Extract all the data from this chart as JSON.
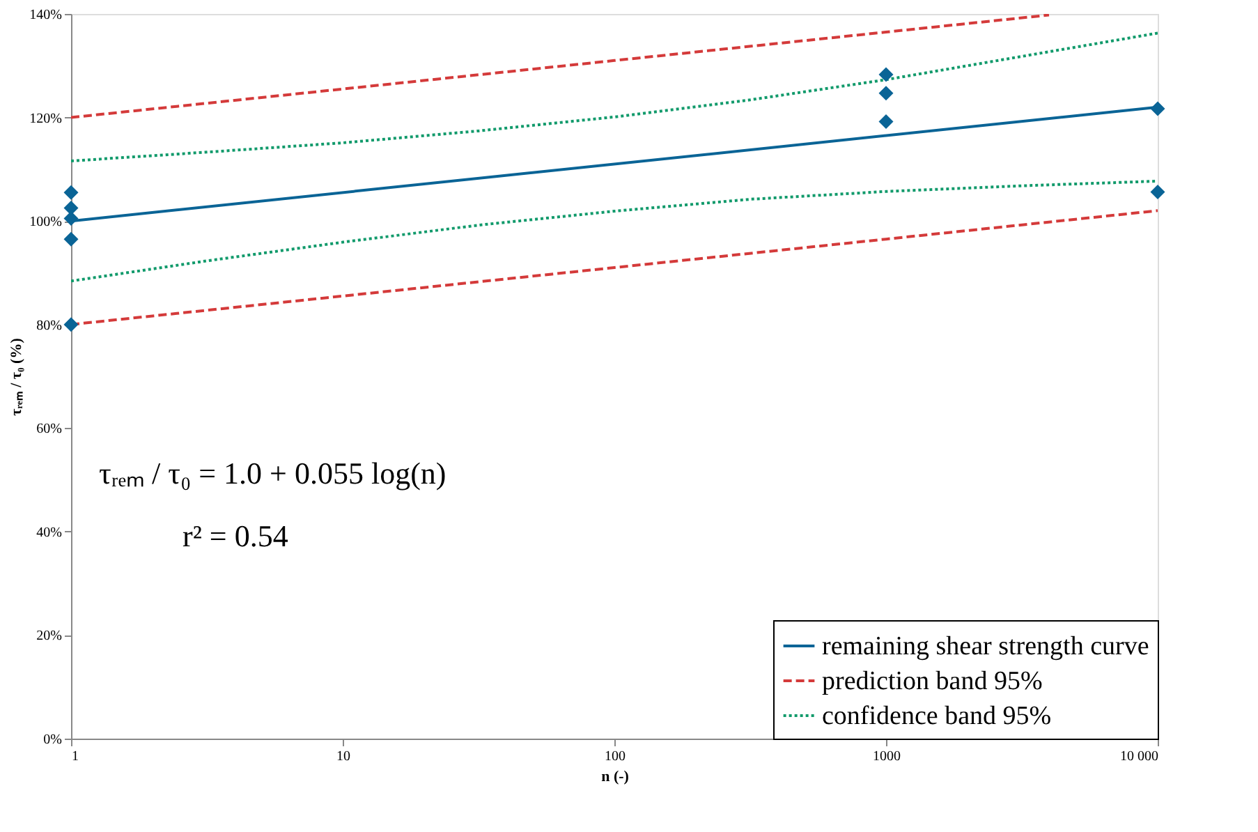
{
  "chart_data": {
    "type": "line",
    "xlabel": "n (-)",
    "ylabel": "τᵣₑₘ / τ₀ (%)",
    "log": "x",
    "grid": false,
    "legend": "bottom right",
    "xlim": [
      1,
      10000
    ],
    "xticks": [
      1,
      10,
      100,
      1000,
      {
        "value": 10000,
        "label": "10 000"
      }
    ],
    "ylim": [
      0,
      140
    ],
    "yticks": [
      {
        "value": 0,
        "label": "0%"
      },
      {
        "value": 20,
        "label": "20%"
      },
      {
        "value": 40,
        "label": "40%"
      },
      {
        "value": 60,
        "label": "60%"
      },
      {
        "value": 80,
        "label": "80%"
      },
      {
        "value": 100,
        "label": "100%"
      },
      {
        "value": 120,
        "label": "120%"
      },
      {
        "value": 140,
        "label": "140%"
      }
    ],
    "annotations": [
      "τᵣₑₘ / τ₀ = 1.0 + 0.055 log(n)",
      "r² = 0.54"
    ],
    "series": [
      {
        "type": "scatter",
        "marker": "diamond",
        "color": "#0a6496",
        "x": [
          1,
          1,
          1,
          1,
          1,
          1000,
          1000,
          1000,
          10000,
          10000
        ],
        "values": [
          105.5,
          102.5,
          100.5,
          96.5,
          80,
          128.3,
          124.7,
          119.2,
          121.7,
          105.6
        ]
      },
      {
        "name": "remaining shear strength curve",
        "color": "#0a6496",
        "line_style": "solid",
        "x": [
          1,
          10000
        ],
        "values": [
          100,
          122
        ]
      },
      {
        "name": "prediction band 95%",
        "color": "#d43a3a",
        "line_style": "dashed",
        "x": [
          1,
          10,
          100,
          1000,
          3981
        ],
        "values": [
          120,
          125.5,
          131,
          136.5,
          139.8
        ]
      },
      {
        "color": "#d43a3a",
        "line_style": "dashed",
        "x": [
          1,
          10,
          100,
          1000,
          10000
        ],
        "values": [
          80,
          85.5,
          91,
          96.5,
          102
        ]
      },
      {
        "name": "confidence band 95%",
        "color": "#119a6b",
        "line_style": "dotted",
        "x": [
          1,
          3.162,
          10,
          31.62,
          100,
          316.2,
          1000,
          3162,
          10000
        ],
        "values": [
          111.6,
          113.3,
          115.1,
          117.4,
          120.1,
          123.4,
          127.3,
          131.8,
          136.3
        ]
      },
      {
        "color": "#119a6b",
        "line_style": "dotted",
        "x": [
          1,
          3.162,
          10,
          31.62,
          100,
          316.2,
          1000,
          3162,
          10000
        ],
        "values": [
          88.4,
          92.3,
          95.9,
          99.2,
          101.9,
          104.2,
          105.7,
          106.8,
          107.7
        ]
      }
    ]
  }
}
